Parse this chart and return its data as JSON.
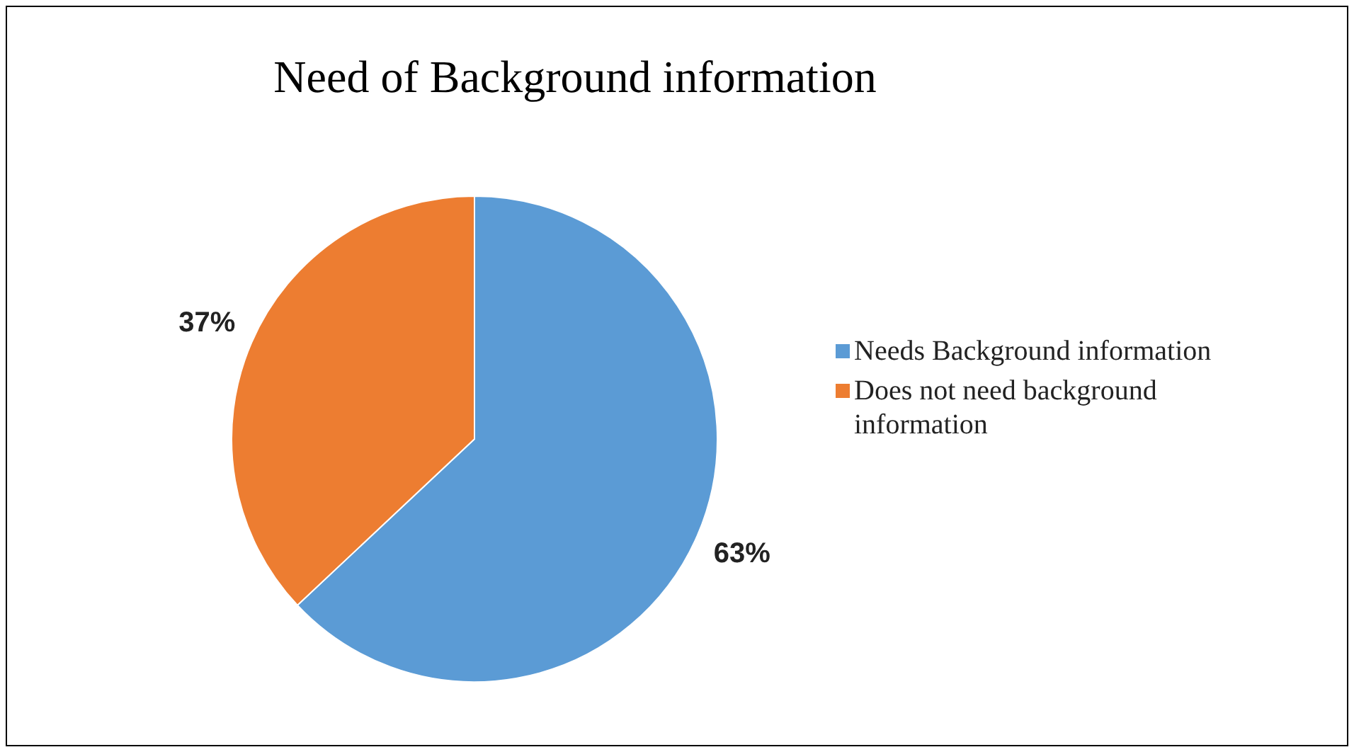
{
  "chart_data": {
    "type": "pie",
    "title": "Need of Background information",
    "categories": [
      "Needs Background information",
      "Does not need background information"
    ],
    "values": [
      63,
      37
    ],
    "colors": [
      "#5b9bd5",
      "#ed7d31"
    ],
    "value_labels": [
      "63%",
      "37%"
    ],
    "legend": "right"
  }
}
